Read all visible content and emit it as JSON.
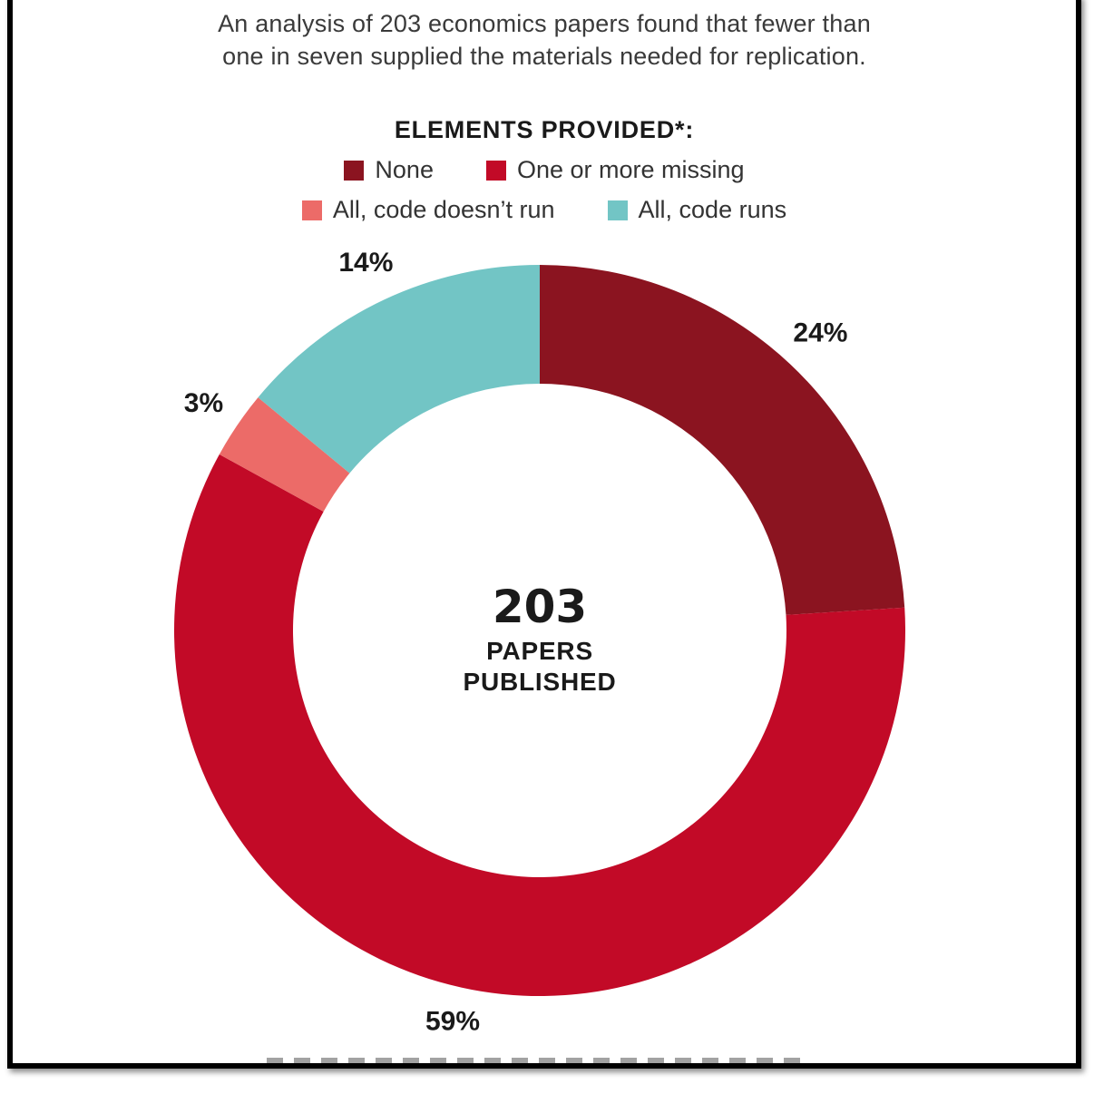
{
  "subtitle": {
    "line1": "An analysis of 203 economics papers found that fewer than",
    "line2": "one in seven supplied the materials needed for replication."
  },
  "colors": {
    "none": "#8b1420",
    "one_or_more_missing": "#c20a27",
    "all_code_doesnt_run": "#ec6b68",
    "all_code_runs": "#72c5c5"
  },
  "chart_data": {
    "type": "pie",
    "style": "donut",
    "legend_title": "ELEMENTS PROVIDED*:",
    "legend_placement": "top",
    "categories": [
      "None",
      "One or more missing",
      "All, code doesn’t run",
      "All, code runs"
    ],
    "values": [
      24,
      59,
      3,
      14
    ],
    "value_labels": [
      "24%",
      "59%",
      "3%",
      "14%"
    ],
    "center": {
      "value": "203",
      "label_line1": "PAPERS",
      "label_line2": "PUBLISHED"
    }
  }
}
